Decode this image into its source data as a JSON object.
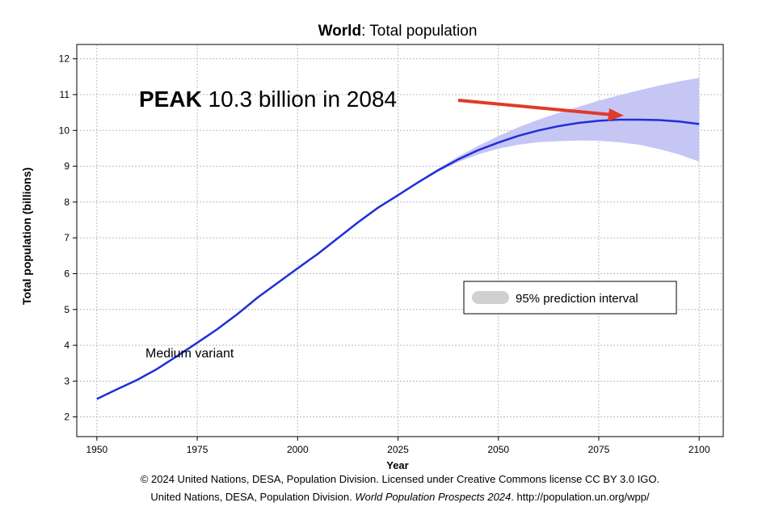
{
  "chart_data": {
    "type": "line",
    "title": {
      "bold": "World",
      "rest": ": Total population"
    },
    "annotation": {
      "bold": "PEAK",
      "rest": " 10.3 billion in 2084"
    },
    "x_label": "Year",
    "y_label": "Total population (billions)",
    "xlim": [
      1945,
      2106
    ],
    "ylim": [
      1.45,
      12.4
    ],
    "xticks": [
      1950,
      1975,
      2000,
      2025,
      2050,
      2075,
      2100
    ],
    "yticks": [
      2,
      3,
      4,
      5,
      6,
      7,
      8,
      9,
      10,
      11,
      12
    ],
    "grid": true,
    "series": [
      {
        "name": "Medium variant",
        "color": "#1f2fd8",
        "x": [
          1950,
          1955,
          1960,
          1965,
          1970,
          1975,
          1980,
          1985,
          1990,
          1995,
          2000,
          2005,
          2010,
          2015,
          2020,
          2025,
          2030,
          2035,
          2040,
          2045,
          2050,
          2055,
          2060,
          2065,
          2070,
          2075,
          2080,
          2085,
          2090,
          2095,
          2100
        ],
        "values": [
          2.5,
          2.77,
          3.03,
          3.34,
          3.7,
          4.07,
          4.45,
          4.87,
          5.33,
          5.74,
          6.15,
          6.55,
          6.99,
          7.43,
          7.84,
          8.19,
          8.55,
          8.89,
          9.19,
          9.45,
          9.66,
          9.85,
          10.0,
          10.12,
          10.21,
          10.27,
          10.3,
          10.3,
          10.29,
          10.25,
          10.18
        ]
      }
    ],
    "band": {
      "name": "95% prediction interval",
      "color": "#c6c6f5",
      "legend_color": "#d0d0d0",
      "x": [
        2025,
        2030,
        2035,
        2040,
        2045,
        2050,
        2055,
        2060,
        2065,
        2070,
        2075,
        2080,
        2085,
        2090,
        2095,
        2100
      ],
      "lower": [
        8.19,
        8.52,
        8.84,
        9.12,
        9.33,
        9.49,
        9.6,
        9.67,
        9.7,
        9.72,
        9.71,
        9.67,
        9.6,
        9.48,
        9.33,
        9.13
      ],
      "upper": [
        8.19,
        8.58,
        8.93,
        9.27,
        9.57,
        9.84,
        10.09,
        10.3,
        10.49,
        10.66,
        10.83,
        10.98,
        11.12,
        11.25,
        11.37,
        11.47
      ]
    },
    "footer": {
      "line1": "© 2024 United Nations, DESA, Population Division. Licensed under Creative Commons license CC BY 3.0 IGO.",
      "line2_pre": "United Nations, DESA, Population Division. ",
      "line2_italic": "World Population Prospects 2024",
      "line2_post": ". http://population.un.org/wpp/"
    }
  }
}
